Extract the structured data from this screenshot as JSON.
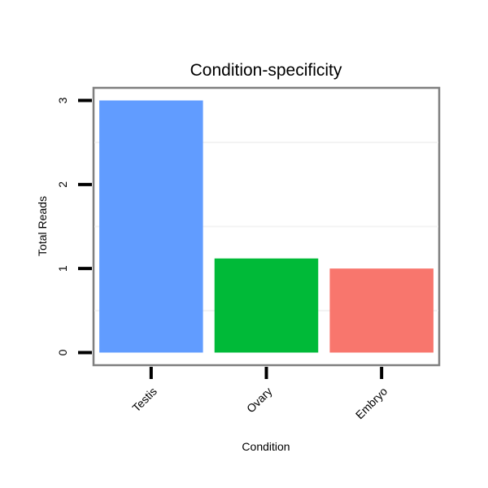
{
  "chart_data": {
    "type": "bar",
    "title": "Condition-specificity",
    "xlabel": "Condition",
    "ylabel": "Total Reads",
    "categories": [
      "Testis",
      "Ovary",
      "Embryo"
    ],
    "values": [
      3,
      1.12,
      1
    ],
    "colors": [
      "#619CFF",
      "#00BA38",
      "#F8766D"
    ],
    "yticks": [
      0,
      1,
      2,
      3
    ],
    "ytick_labels": [
      "0",
      "1",
      "2",
      "3"
    ],
    "ylim": [
      -0.15,
      3.15
    ],
    "grid": "minor horizontal only, faint",
    "legend": "none"
  }
}
